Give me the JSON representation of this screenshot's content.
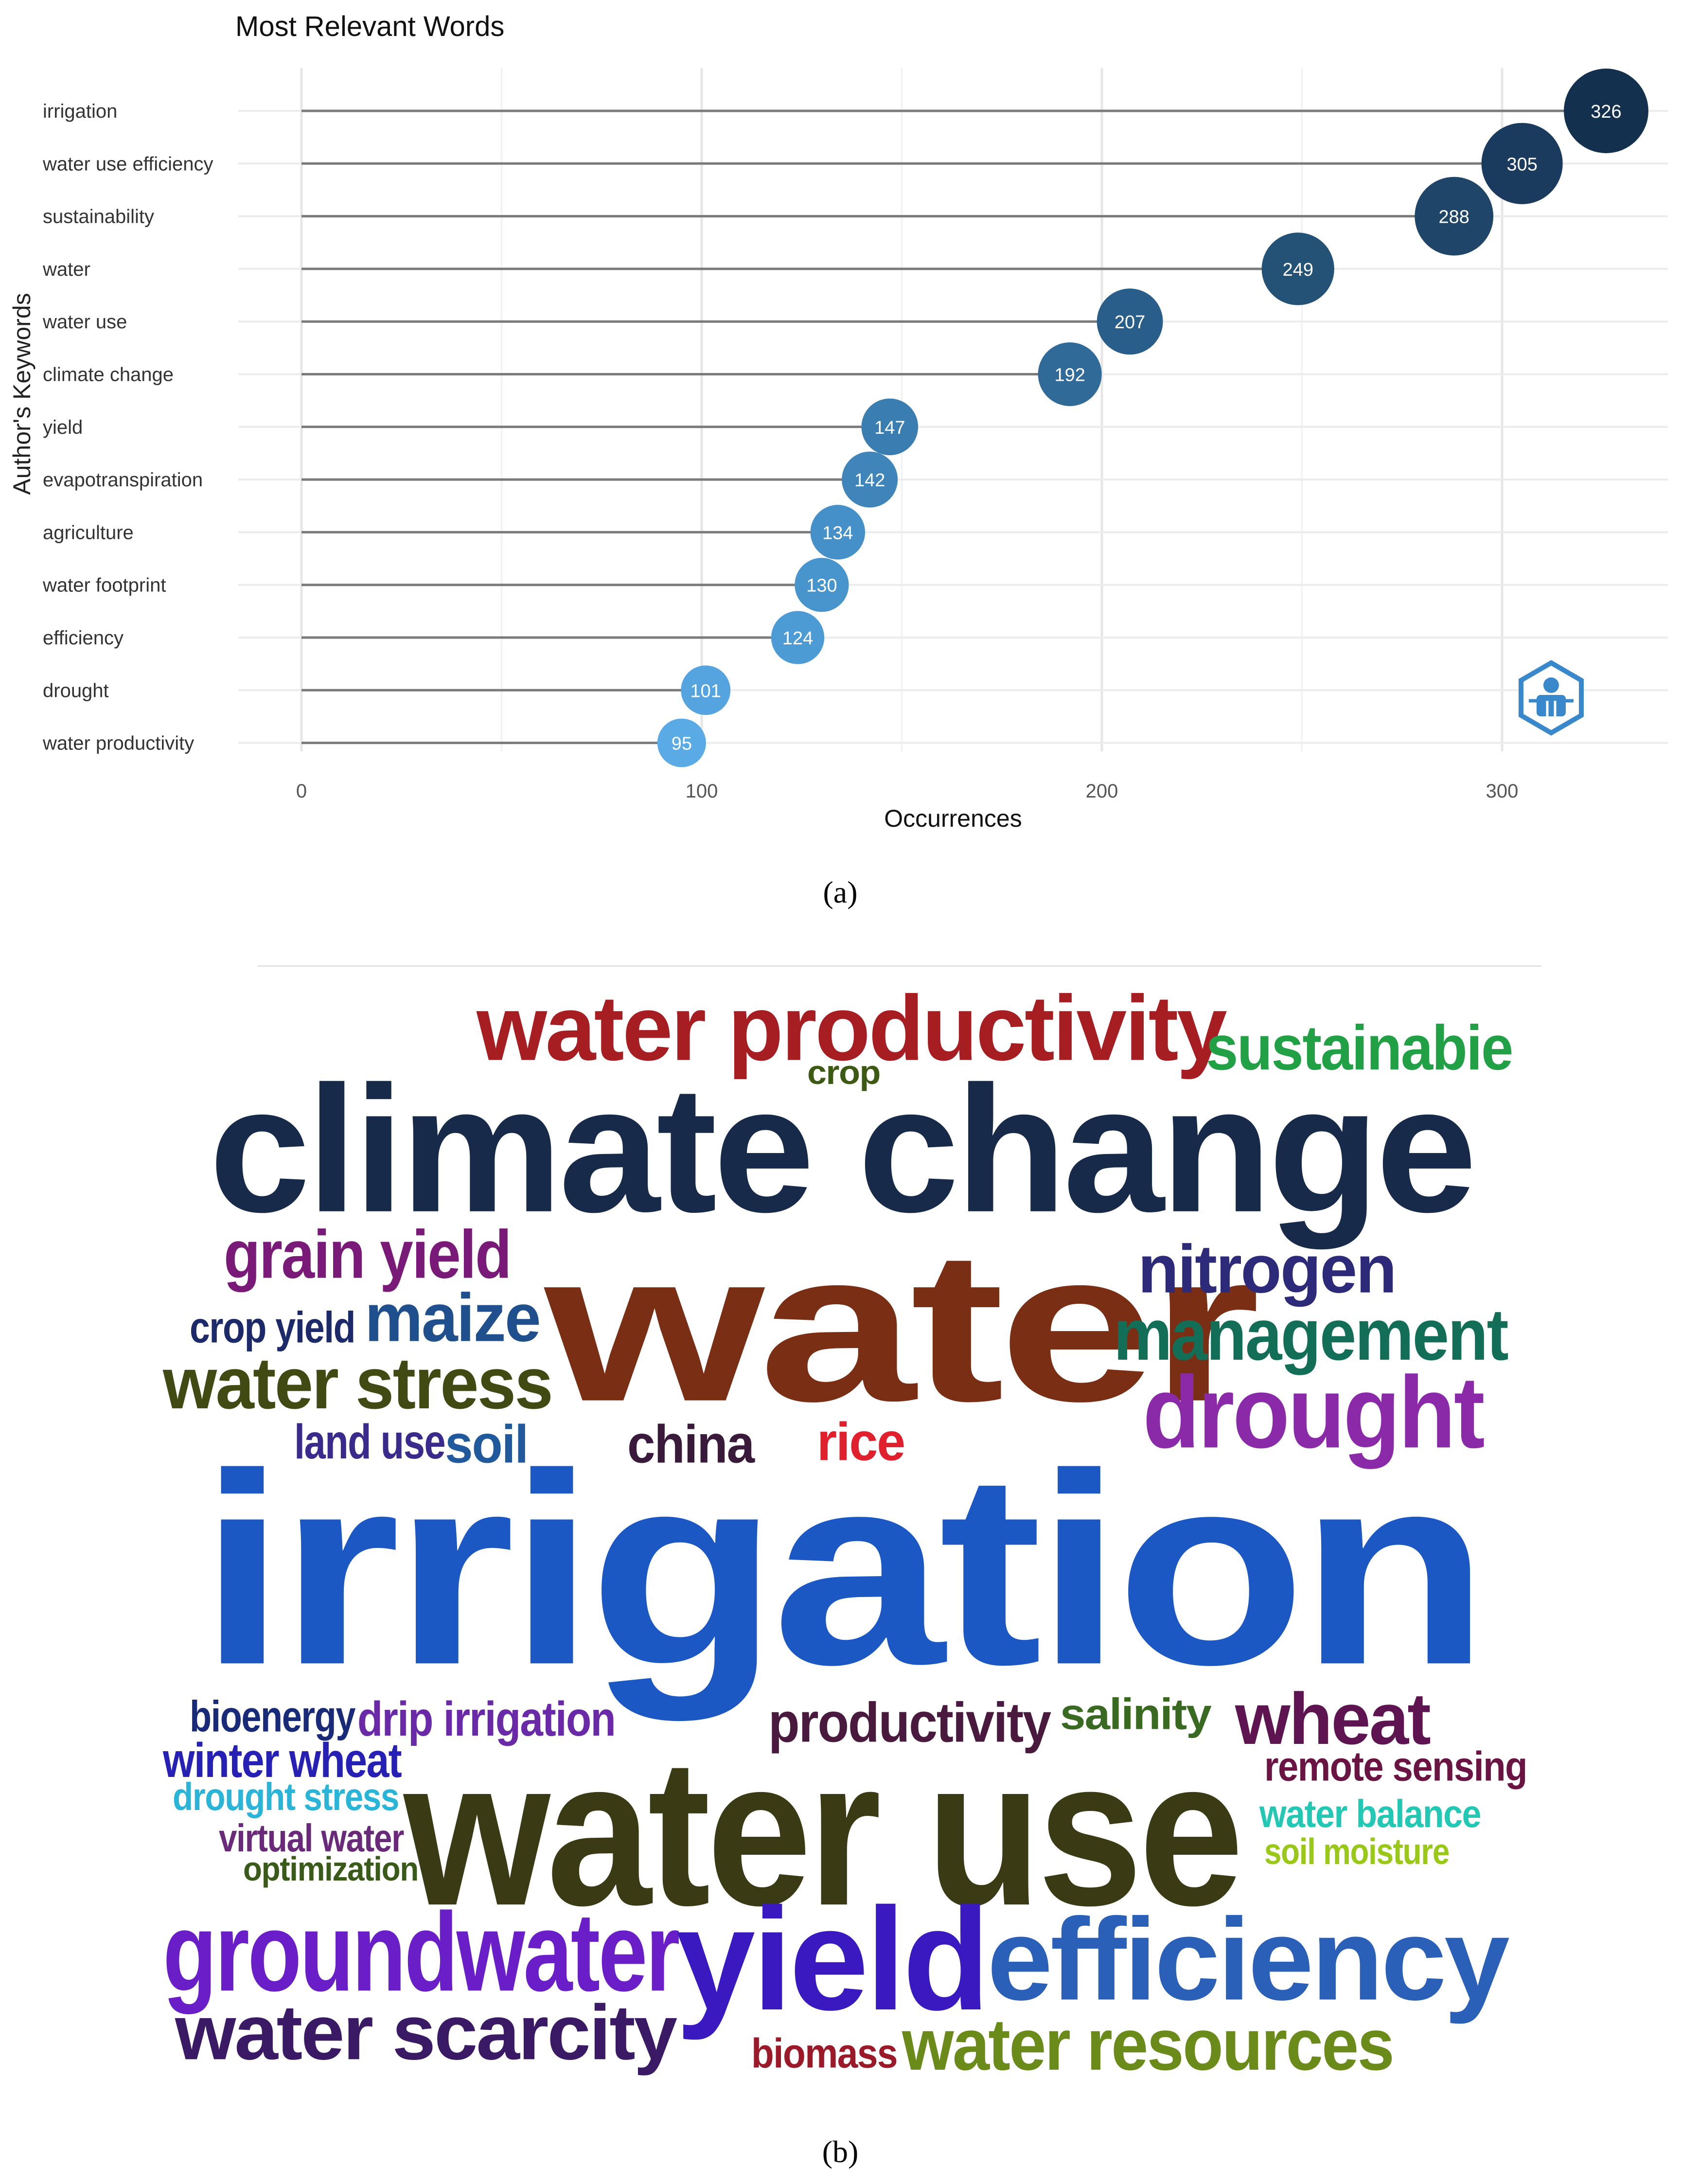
{
  "chart_data": [
    {
      "type": "lollipop",
      "title": "Most Relevant Words",
      "xlabel": "Occurrences",
      "ylabel": "Author's Keywords",
      "xlim": [
        0,
        340
      ],
      "xticks": [
        0,
        100,
        200,
        300
      ],
      "grid": true,
      "categories": [
        "irrigation",
        "water use efficiency",
        "sustainability",
        "water",
        "water use",
        "climate change",
        "yield",
        "evapotranspiration",
        "agriculture",
        "water footprint",
        "efficiency",
        "drought",
        "water productivity"
      ],
      "values": [
        326,
        305,
        288,
        249,
        207,
        192,
        147,
        142,
        134,
        130,
        124,
        101,
        95
      ],
      "colors": [
        "#14304f",
        "#1a3a5e",
        "#1f4668",
        "#245277",
        "#2a5e8a",
        "#2f6a98",
        "#3a7db0",
        "#3f85ba",
        "#4590c8",
        "#4894cc",
        "#4c9bd4",
        "#55a4e0",
        "#5aaae6"
      ],
      "logo_icon": "bibliometrix-hexagon-icon"
    },
    {
      "type": "wordcloud",
      "words": [
        {
          "text": "water productivity",
          "color": "#a61e22"
        },
        {
          "text": "sustainabie",
          "color": "#21a046"
        },
        {
          "text": "crop",
          "color": "#3d5a14"
        },
        {
          "text": "climate change",
          "color": "#172a4a"
        },
        {
          "text": "grain yield",
          "color": "#7a1a78"
        },
        {
          "text": "water",
          "color": "#7a2e14"
        },
        {
          "text": "nitrogen",
          "color": "#2e2a7a"
        },
        {
          "text": "crop yield",
          "color": "#1c2a6a"
        },
        {
          "text": "maize",
          "color": "#1f4f8c"
        },
        {
          "text": "management",
          "color": "#136e58"
        },
        {
          "text": "water stress",
          "color": "#404a12"
        },
        {
          "text": "drought",
          "color": "#8a2aa8"
        },
        {
          "text": "land use",
          "color": "#3a2a8c"
        },
        {
          "text": "soil",
          "color": "#205a9c"
        },
        {
          "text": "china",
          "color": "#3a1a3a"
        },
        {
          "text": "rice",
          "color": "#e0202c"
        },
        {
          "text": "irrigation",
          "color": "#1c58c4"
        },
        {
          "text": "bioenergy",
          "color": "#182a78"
        },
        {
          "text": "drip irrigation",
          "color": "#6a2aa8"
        },
        {
          "text": "productivity",
          "color": "#4a1a3e"
        },
        {
          "text": "salinity",
          "color": "#3a6a22"
        },
        {
          "text": "wheat",
          "color": "#5e1450"
        },
        {
          "text": "winter wheat",
          "color": "#2620b4"
        },
        {
          "text": "water use",
          "color": "#3a3a14"
        },
        {
          "text": "remote sensing",
          "color": "#6a1444"
        },
        {
          "text": "drought stress",
          "color": "#2ab4d8"
        },
        {
          "text": "water balance",
          "color": "#22c8b4"
        },
        {
          "text": "virtual water",
          "color": "#6a2a7a"
        },
        {
          "text": "soil moisture",
          "color": "#9ac818"
        },
        {
          "text": "optimization",
          "color": "#3a5a1a"
        },
        {
          "text": "groundwater",
          "color": "#6a1ec8"
        },
        {
          "text": "yield",
          "color": "#3a1ac0"
        },
        {
          "text": "efficiency",
          "color": "#2a60b8"
        },
        {
          "text": "water scarcity",
          "color": "#3a1a64"
        },
        {
          "text": "biomass",
          "color": "#9a1a2a"
        },
        {
          "text": "water resources",
          "color": "#6a8a1a"
        }
      ]
    }
  ],
  "panels": {
    "a": "(a)",
    "b": "(b)"
  }
}
